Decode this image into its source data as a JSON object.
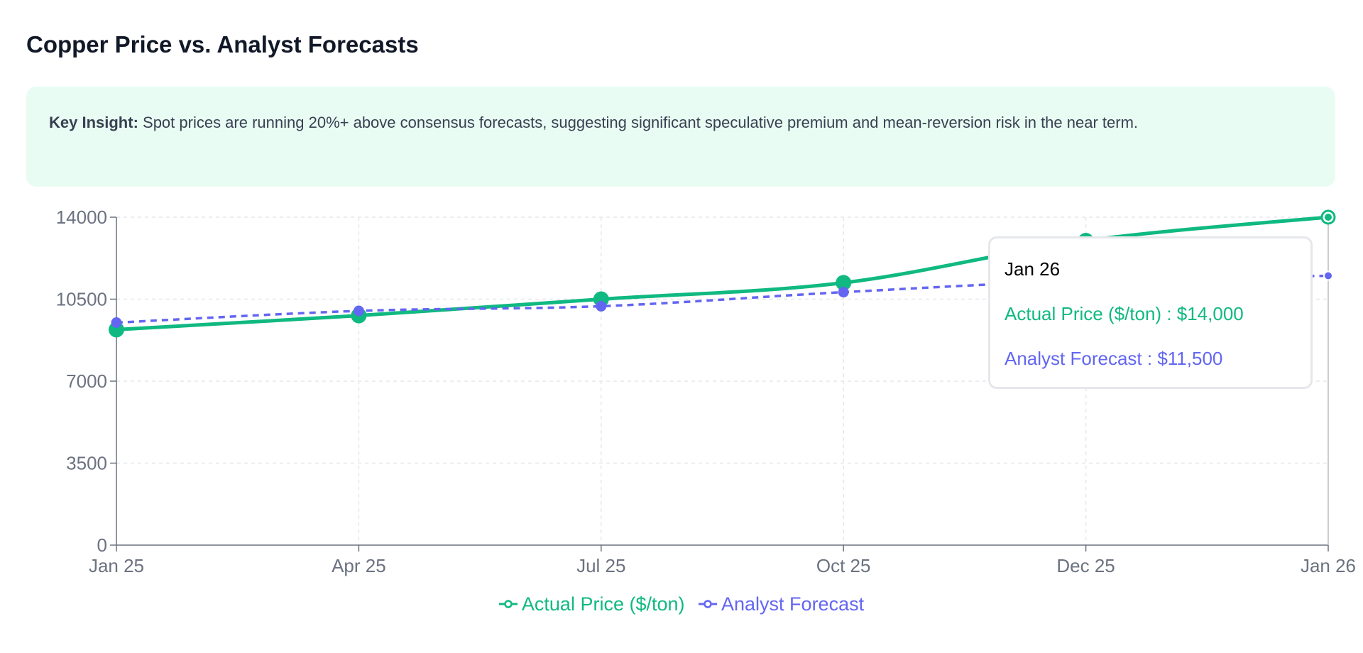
{
  "title": "Copper Price vs. Analyst Forecasts",
  "insight": {
    "label": "Key Insight:",
    "text": " Spot prices are running 20%+ above consensus forecasts, suggesting significant speculative premium and mean-reversion risk in the near term."
  },
  "tooltip": {
    "label": "Jan 26",
    "rows": [
      {
        "name": "Actual Price ($/ton)",
        "value": "$14,000"
      },
      {
        "name": "Analyst Forecast",
        "value": "$11,500"
      }
    ]
  },
  "chart_data": {
    "type": "line",
    "categories": [
      "Jan 25",
      "Apr 25",
      "Jul 25",
      "Oct 25",
      "Dec 25",
      "Jan 26"
    ],
    "ylim": [
      0,
      14000
    ],
    "yticks": [
      "0",
      "3500",
      "7000",
      "10500",
      "14000"
    ],
    "grid": true,
    "legend": "bottom",
    "series": [
      {
        "name": "Actual Price ($/ton)",
        "color": "#10b981",
        "style": "solid",
        "values": [
          9200,
          9800,
          10500,
          11200,
          13000,
          14000
        ]
      },
      {
        "name": "Analyst Forecast",
        "color": "#6366f1",
        "style": "dashed",
        "values": [
          9500,
          10000,
          10200,
          10800,
          11300,
          11500
        ]
      }
    ],
    "active_category": "Jan 26"
  }
}
